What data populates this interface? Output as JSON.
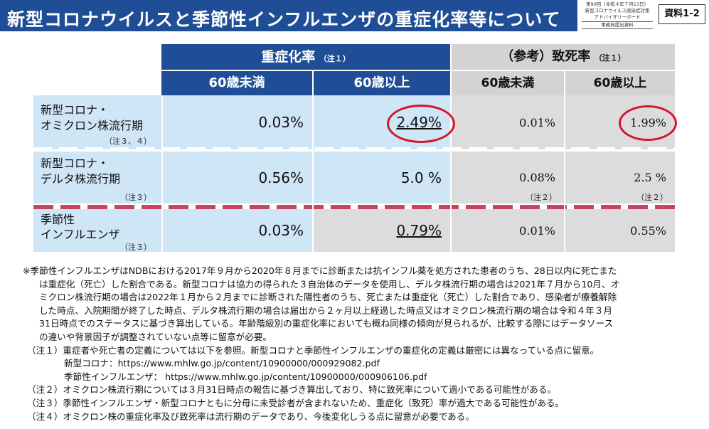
{
  "title": "新型コロナウイルスと季節性インフルエンザの重症化率等について",
  "meeting": {
    "line1": "第90回（令和４年７月13日）",
    "line2": "新型コロナウイルス感染症対策",
    "line3": "アドバイザリーボード",
    "line4": "事務局提出資料"
  },
  "doc_number": "資料1-2",
  "table": {
    "severity_header": "重症化率",
    "severity_note": "（注１）",
    "fatality_header": "（参考）致死率",
    "fatality_note": "（注１）",
    "col_under60": "60歳未満",
    "col_over60": "60歳以上",
    "rows": [
      {
        "label_line1": "新型コロナ・",
        "label_line2": "オミクロン株流行期",
        "label_note": "（注３、４）",
        "sev_under60": "0.03%",
        "sev_over60": "2.49%",
        "fat_under60": "0.01%",
        "fat_over60": "1.99%",
        "fat_under60_note": "",
        "fat_over60_note": ""
      },
      {
        "label_line1": "新型コロナ・",
        "label_line2": "デルタ株流行期",
        "label_note": "（注３）",
        "sev_under60": "0.56%",
        "sev_over60": "5.0 %",
        "fat_under60": "0.08%",
        "fat_over60": "2.5 %",
        "fat_under60_note": "（注２）",
        "fat_over60_note": "（注２）"
      },
      {
        "label_line1": "季節性",
        "label_line2": "インフルエンザ",
        "label_note": "（注３）",
        "sev_under60": "0.03%",
        "sev_over60": "0.79%",
        "fat_under60": "0.01%",
        "fat_over60": "0.55%",
        "fat_under60_note": "",
        "fat_over60_note": ""
      }
    ]
  },
  "notes": {
    "main": [
      "※季節性インフルエンザはNDBにおける2017年９月から2020年８月までに診断または抗インフル薬を処方された患者のうち、28日以内に死亡また",
      "は重症化（死亡）した割合である。新型コロナは協力の得られた３自治体のデータを使用し、デルタ株流行期の場合は2021年７月から10月、オ",
      "ミクロン株流行期の場合は2022年１月から２月までに診断された陽性者のうち、死亡または重症化（死亡）した割合であり、感染者が療養解除",
      "した時点、入院期間が終了した時点、デルタ株流行期の場合は届出から２ヶ月以上経過した時点又はオミクロン株流行期の場合は令和４年３月",
      "31日時点でのステータスに基づき算出している。年齢階級別の重症化率においても概ね同様の傾向が見られるが、比較する際にはデータソース",
      "の違いや背景因子が調整されていない点等に留意が必要。"
    ],
    "note1": "（注１）重症者や死亡者の定義については以下を参照。新型コロナと季節性インフルエンザの重症化の定義は厳密には異なっている点に留意。",
    "note1_covid": "新型コロナ：https://www.mhlw.go.jp/content/10900000/000929082.pdf",
    "note1_flu": "季節性インフルエンザ： https://www.mhlw.go.jp/content/10900000/000906106.pdf",
    "note2": "（注２）オミクロン株流行期については３月31日時点の報告に基づき算出しており、特に致死率について過小である可能性がある。",
    "note3": "（注３）季節性インフルエンザ・新型コロナともに分母に未受診者が含まれないため、重症化（致死）率が過大である可能性がある。",
    "note4": "（注４）オミクロン株の重症化率及び致死率は流行期のデータであり、今後変化しうる点に留意が必要である。"
  },
  "colors": {
    "header_blue": "#1f4e96",
    "cell_blue": "#cfe6f7",
    "cell_gray": "#dcdcdc",
    "highlight_red": "#d6162b"
  }
}
